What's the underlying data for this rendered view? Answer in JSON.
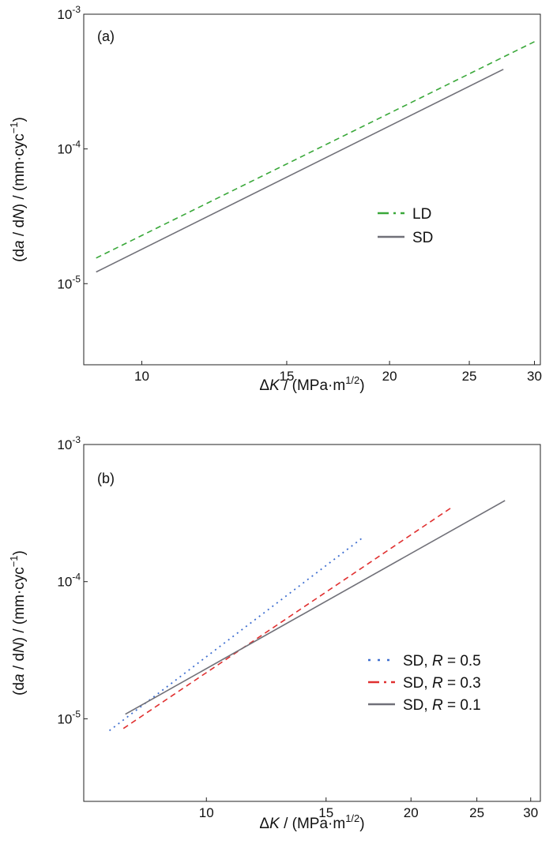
{
  "chart_data": [
    {
      "panel": "(a)",
      "type": "line",
      "xscale": "log",
      "yscale": "log",
      "xlim": [
        8.5,
        30.5
      ],
      "ylim": [
        2.5e-06,
        0.001
      ],
      "xticks": [
        10,
        15,
        20,
        25,
        30
      ],
      "yticks": [
        {
          "value": 1e-05,
          "mantissa": "10",
          "exponent": "-5"
        },
        {
          "value": 0.0001,
          "mantissa": "10",
          "exponent": "-4"
        },
        {
          "value": 0.001,
          "mantissa": "10",
          "exponent": "-3"
        }
      ],
      "xlabel": {
        "delta": "Δ",
        "var": "K",
        "unit": " / (MPa·m",
        "unit_exp": "1/2",
        "close": ")"
      },
      "ylabel": {
        "open": "(d",
        "a": "a",
        "slash": " / d",
        "n": "N",
        "unit": ") / (mm·cyc",
        "unit_exp": "−1",
        "close": ")"
      },
      "legend": {
        "position": "center-right"
      },
      "series": [
        {
          "name": "LD",
          "style": "dashed",
          "color": "#3aa83a",
          "x": [
            8.8,
            30.0
          ],
          "y": [
            1.55e-05,
            0.000625
          ]
        },
        {
          "name": "SD",
          "style": "solid",
          "color": "#707078",
          "x": [
            8.8,
            27.5
          ],
          "y": [
            1.22e-05,
            0.00039
          ]
        }
      ]
    },
    {
      "panel": "(b)",
      "type": "line",
      "xscale": "log",
      "yscale": "log",
      "xlim": [
        6.6,
        31.0
      ],
      "ylim": [
        2.5e-06,
        0.001
      ],
      "xticks": [
        10,
        15,
        20,
        25,
        30
      ],
      "yticks": [
        {
          "value": 1e-05,
          "mantissa": "10",
          "exponent": "-5"
        },
        {
          "value": 0.0001,
          "mantissa": "10",
          "exponent": "-4"
        },
        {
          "value": 0.001,
          "mantissa": "10",
          "exponent": "-3"
        }
      ],
      "xlabel": {
        "delta": "Δ",
        "var": "K",
        "unit": " / (MPa·m",
        "unit_exp": "1/2",
        "close": ")"
      },
      "ylabel": {
        "open": "(d",
        "a": "a",
        "slash": " / d",
        "n": "N",
        "unit": ") / (mm·cyc",
        "unit_exp": "−1",
        "close": ")"
      },
      "legend": {
        "position": "lower-right"
      },
      "series": [
        {
          "name_prefix": "SD, ",
          "name_var": "R",
          "name_suffix": " = 0.5",
          "style": "dotted",
          "color": "#3f6fd0",
          "x": [
            7.2,
            17.0
          ],
          "y": [
            8.2e-06,
            0.00021
          ]
        },
        {
          "name_prefix": "SD, ",
          "name_var": "R",
          "name_suffix": " = 0.3",
          "style": "dashed",
          "color": "#e03030",
          "x": [
            7.55,
            23.0
          ],
          "y": [
            8.5e-06,
            0.00035
          ]
        },
        {
          "name_prefix": "SD, ",
          "name_var": "R",
          "name_suffix": " = 0.1",
          "style": "solid",
          "color": "#707078",
          "x": [
            7.6,
            27.5
          ],
          "y": [
            1.08e-05,
            0.00039
          ]
        }
      ]
    }
  ]
}
